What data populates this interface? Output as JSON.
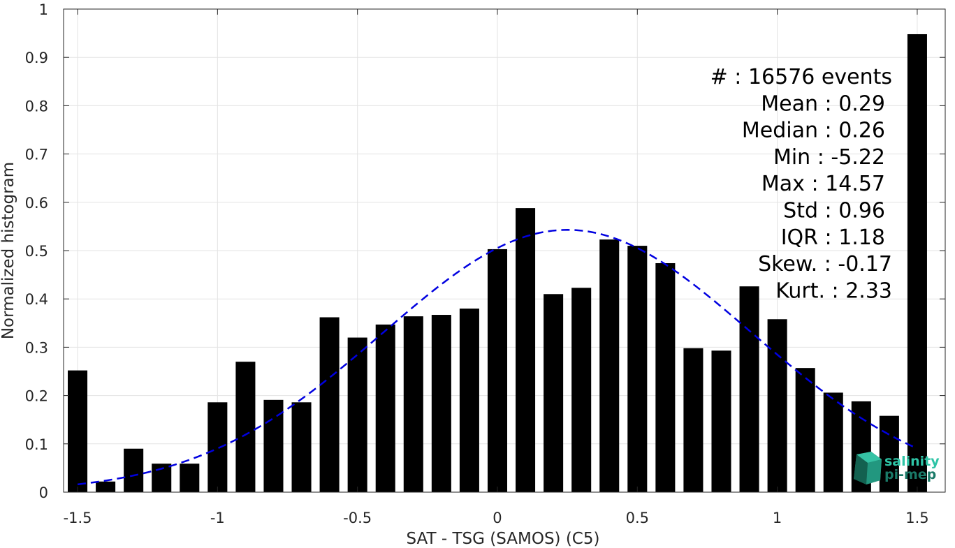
{
  "chart_data": {
    "type": "bar",
    "xlabel": "SAT - TSG (SAMOS) (C5)",
    "ylabel": "Normalized histogram",
    "xlim": [
      -1.55,
      1.6
    ],
    "ylim": [
      0,
      1
    ],
    "grid": true,
    "x_ticks": [
      -1.5,
      -1,
      -0.5,
      0,
      0.5,
      1,
      1.5
    ],
    "x_tick_labels": [
      "-1.5",
      "-1",
      "-0.5",
      "0",
      "0.5",
      "1",
      "1.5"
    ],
    "y_ticks": [
      0,
      0.1,
      0.2,
      0.3,
      0.4,
      0.5,
      0.6,
      0.7,
      0.8,
      0.9,
      1
    ],
    "y_tick_labels": [
      "0",
      "0.1",
      "0.2",
      "0.3",
      "0.4",
      "0.5",
      "0.6",
      "0.7",
      "0.8",
      "0.9",
      "1"
    ],
    "bar_width": 0.07,
    "x": [
      -1.5,
      -1.4,
      -1.3,
      -1.2,
      -1.1,
      -1.0,
      -0.9,
      -0.8,
      -0.7,
      -0.6,
      -0.5,
      -0.4,
      -0.3,
      -0.2,
      -0.1,
      0.0,
      0.1,
      0.2,
      0.3,
      0.4,
      0.5,
      0.6,
      0.7,
      0.8,
      0.9,
      1.0,
      1.1,
      1.2,
      1.3,
      1.4,
      1.5
    ],
    "values": [
      0.252,
      0.022,
      0.09,
      0.059,
      0.059,
      0.186,
      0.27,
      0.191,
      0.186,
      0.362,
      0.32,
      0.347,
      0.364,
      0.367,
      0.38,
      0.503,
      0.588,
      0.41,
      0.423,
      0.523,
      0.51,
      0.474,
      0.298,
      0.293,
      0.426,
      0.358,
      0.257,
      0.206,
      0.188,
      0.158,
      0.948
    ],
    "bar_color": "#000000",
    "fit_curve": {
      "style": "dashed",
      "color": "#0000e0",
      "x_range": [
        -1.5,
        1.5
      ],
      "mean": 0.25,
      "std": 0.66,
      "peak": 0.543
    },
    "stats": [
      "#  : 16576 events",
      "Mean : 0.29",
      "Median : 0.26",
      "Min : -5.22",
      "Max : 14.57",
      "Std : 0.96",
      "IQR : 1.18",
      "Skew. : -0.17",
      "Kurt. : 2.33"
    ]
  },
  "logo": {
    "line1": "salinity",
    "line2": "pi-mep",
    "color1": "#2ec4a6",
    "color2": "#1a7a68"
  }
}
